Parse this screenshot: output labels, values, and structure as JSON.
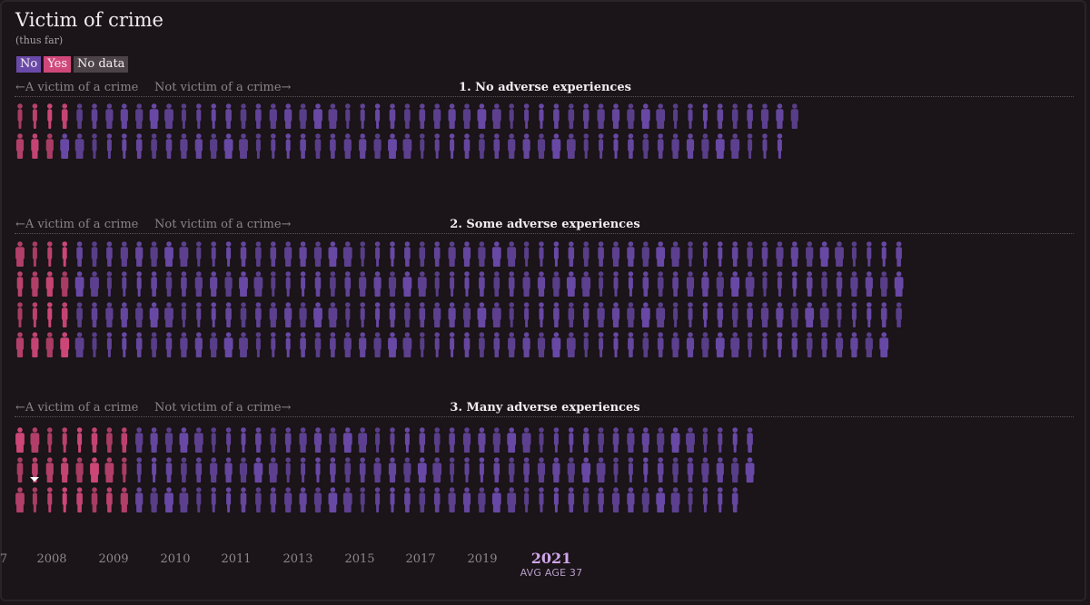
{
  "title": "Victim of crime",
  "subtitle": "(thus far)",
  "legend": [
    {
      "label": "No",
      "color": "#6a4aa8"
    },
    {
      "label": "Yes",
      "color": "#d0487a"
    },
    {
      "label": "No data",
      "color": "#4b4347"
    }
  ],
  "direction_labels": {
    "left": "←A victim of a crime",
    "right": "Not victim of a crime→"
  },
  "colors": {
    "no": "#6a4aa8",
    "yes": "#d0487a",
    "background": "#1b1418",
    "current_year": "#cfa6ea"
  },
  "chart_data": {
    "type": "table",
    "title": "Victim of crime",
    "subtitle": "(thus far)",
    "unit": "one figure per person",
    "series": [
      {
        "name": "No",
        "color": "#6a4aa8"
      },
      {
        "name": "Yes",
        "color": "#d0487a"
      },
      {
        "name": "No data",
        "color": "#4b4347"
      }
    ],
    "groups": [
      {
        "label": "1. No adverse experiences",
        "rows": [
          {
            "yes": 4,
            "no": 49
          },
          {
            "yes": 3,
            "no": 49
          }
        ]
      },
      {
        "label": "2. Some adverse experiences",
        "rows": [
          {
            "yes": 4,
            "no": 56
          },
          {
            "yes": 4,
            "no": 56
          },
          {
            "yes": 4,
            "no": 56
          },
          {
            "yes": 4,
            "no": 55
          }
        ]
      },
      {
        "label": "3. Many adverse experiences",
        "rows": [
          {
            "yes": 8,
            "no": 42
          },
          {
            "yes": 8,
            "no": 42
          },
          {
            "yes": 8,
            "no": 41
          }
        ]
      }
    ]
  },
  "timeline": {
    "years": [
      "7",
      "2008",
      "2009",
      "2010",
      "2011",
      "2013",
      "2015",
      "2017",
      "2019"
    ],
    "current_year": "2021",
    "current_label": "AVG AGE 37"
  }
}
